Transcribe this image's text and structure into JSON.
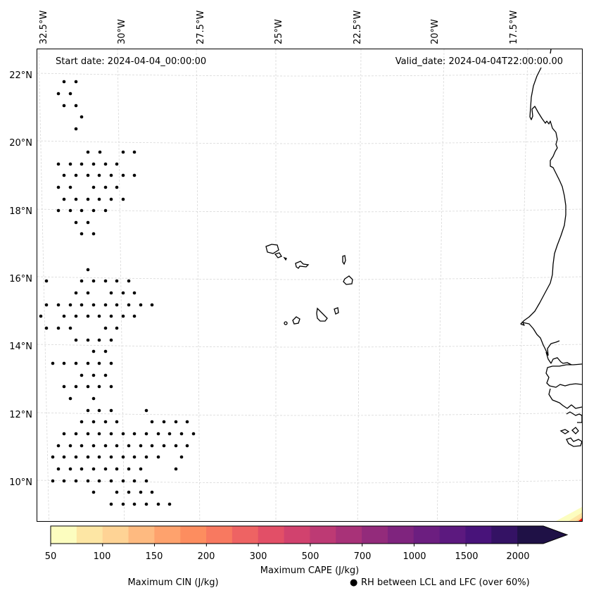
{
  "map": {
    "start_date_label": "Start date: 2024-04-04_00:00:00",
    "valid_date_label": "Valid_date: 2024-04-04T22:00:00.00",
    "lon_ticks": [
      "32.5°W",
      "30°W",
      "27.5°W",
      "25°W",
      "22.5°W",
      "20°W",
      "17.5°W"
    ],
    "lat_ticks": [
      "22°N",
      "20°N",
      "18°N",
      "16°N",
      "14°N",
      "12°N",
      "10°N"
    ],
    "extent": {
      "lon_min": -33.0,
      "lon_max": -16.0,
      "lat_min": 8.9,
      "lat_max": 22.8
    },
    "region_features": [
      "West African coastline",
      "Cape Verde islands"
    ],
    "stipple_marker": "filled-circle"
  },
  "colorbar": {
    "label": "Maximum CAPE (J/kg)",
    "tick_labels": [
      "50",
      "100",
      "150",
      "200",
      "300",
      "500",
      "700",
      "1000",
      "1500",
      "2000"
    ],
    "levels": [
      50,
      75,
      100,
      125,
      150,
      175,
      200,
      250,
      300,
      400,
      500,
      600,
      700,
      850,
      1000,
      1250,
      1500,
      1750,
      2000
    ],
    "colors": [
      "#fcfdbf",
      "#fde6a4",
      "#fed395",
      "#feba80",
      "#fea26d",
      "#fd8d5f",
      "#f87960",
      "#ee6363",
      "#e24f67",
      "#d1426e",
      "#bd3a74",
      "#a83278",
      "#932b7b",
      "#7f247e",
      "#6c1e80",
      "#5c197f",
      "#48137a",
      "#341264",
      "#1f1146"
    ],
    "extend": "max"
  },
  "legend": {
    "cin_label": "Maximum CIN (J/kg)",
    "cin_color": "#ff0000",
    "rh_marker": "●",
    "rh_label": "RH between LCL and LFC (over 60%)"
  }
}
